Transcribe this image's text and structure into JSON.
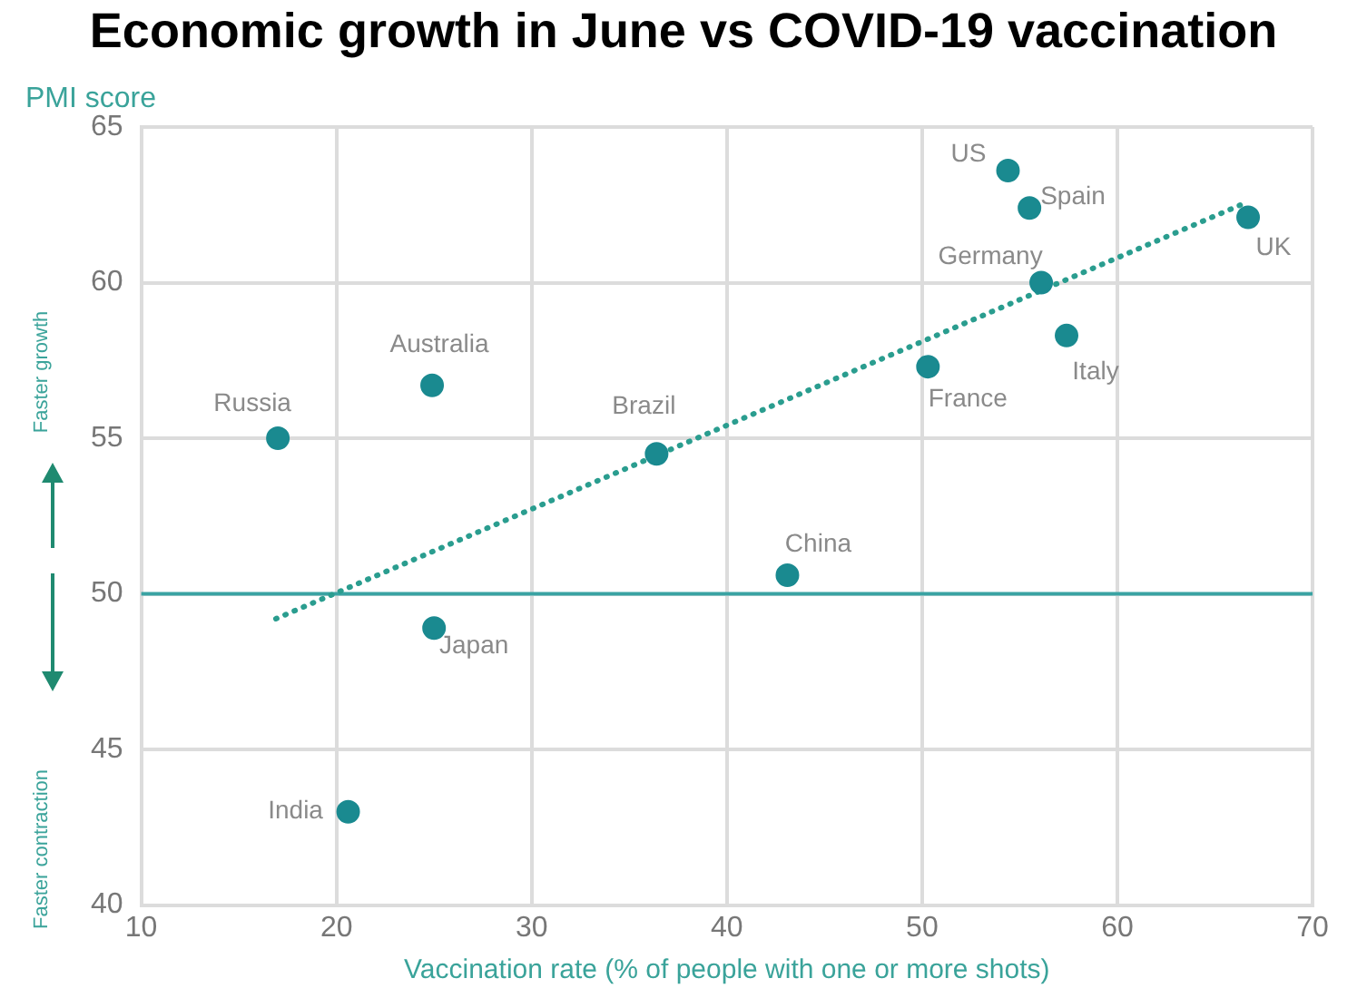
{
  "chart_data": {
    "type": "scatter",
    "title": "Economic growth in June vs COVID-19 vaccination",
    "ylabel": "PMI score",
    "xlabel": "Vaccination rate (% of people with one or more shots)",
    "xlim": [
      10,
      70
    ],
    "xticks": [
      10,
      20,
      30,
      40,
      50,
      60,
      70
    ],
    "ylim": [
      40,
      65
    ],
    "yticks": [
      40,
      45,
      50,
      55,
      60,
      65
    ],
    "grid": true,
    "legend": false,
    "marker": "circle",
    "series": [
      {
        "color": "#1a8a90",
        "x": [
          54.4,
          55.5,
          66.7,
          56.1,
          57.4,
          50.3,
          43.1,
          24.9,
          17.0,
          36.4,
          25.0,
          20.6
        ],
        "values": [
          63.6,
          62.4,
          62.1,
          60.0,
          58.3,
          57.3,
          50.6,
          56.7,
          55.0,
          54.5,
          48.9,
          43.0
        ]
      },
      {
        "type": "line",
        "color": "#2a9d8f",
        "line_style": "dotted",
        "marker": "none",
        "x": [
          16.9,
          66.7
        ],
        "values": [
          49.2,
          62.6
        ]
      }
    ],
    "ref_lines": [
      {
        "axis": "y",
        "value": 50,
        "color": "#3aa3a3",
        "line_style": "solid"
      }
    ],
    "annotations": [
      {
        "text": "US",
        "x": 54.4,
        "y": 63.6
      },
      {
        "text": "Spain",
        "x": 55.5,
        "y": 62.4
      },
      {
        "text": "UK",
        "x": 66.7,
        "y": 62.1
      },
      {
        "text": "Germany",
        "x": 56.1,
        "y": 60.0
      },
      {
        "text": "Italy",
        "x": 57.4,
        "y": 58.3
      },
      {
        "text": "France",
        "x": 50.3,
        "y": 57.3
      },
      {
        "text": "China",
        "x": 43.1,
        "y": 50.6
      },
      {
        "text": "Australia",
        "x": 24.9,
        "y": 56.7
      },
      {
        "text": "Russia",
        "x": 17.0,
        "y": 55.0
      },
      {
        "text": "Brazil",
        "x": 36.4,
        "y": 54.5
      },
      {
        "text": "Japan",
        "x": 25.0,
        "y": 48.9
      },
      {
        "text": "India",
        "x": 20.6,
        "y": 43.0
      },
      "Faster growth",
      "Faster contraction"
    ]
  }
}
